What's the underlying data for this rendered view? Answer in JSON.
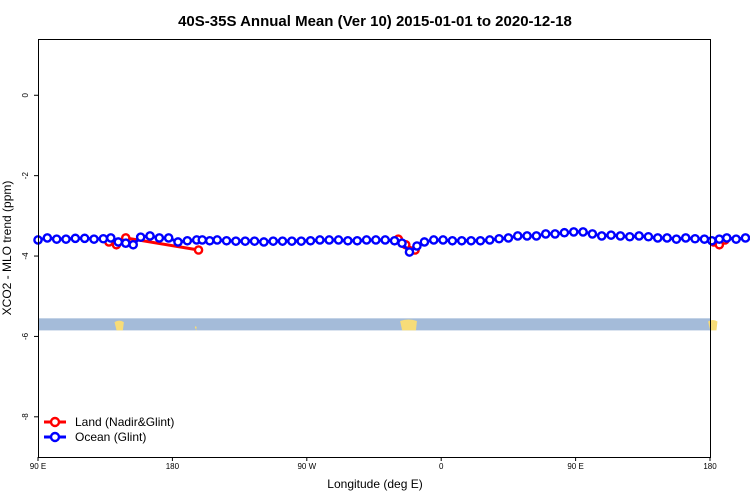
{
  "chart_data": {
    "type": "line",
    "title": "40S-35S Annual Mean (Ver 10)   2015-01-01 to 2020-12-18",
    "xlabel": "Longitude (deg E)",
    "ylabel": "XCO2 - MLO trend (ppm)",
    "xlim": [
      90,
      450
    ],
    "ylim": [
      -9.0,
      1.4
    ],
    "x_ticks": [
      {
        "value": 90,
        "label": "90 E"
      },
      {
        "value": 180,
        "label": "180"
      },
      {
        "value": 270,
        "label": "90 W"
      },
      {
        "value": 360,
        "label": "0"
      },
      {
        "value": 450,
        "label": "90 E"
      },
      {
        "value": 540,
        "label": "180"
      }
    ],
    "y_ticks": [
      0,
      -2,
      -4,
      -6,
      -8
    ],
    "grid": false,
    "legend_position": "bottom-left",
    "map_strip": {
      "y_top": -5.55,
      "y_bottom": -5.85,
      "ocean_color": "#a4bbd9",
      "land_color": "#f7dc78",
      "land": [
        [
          131,
          136,
          0.15
        ],
        [
          174,
          175,
          0.6
        ],
        [
          284,
          293,
          0.05
        ],
        [
          449,
          454,
          0.1
        ],
        [
          484,
          486,
          0.6
        ]
      ]
    },
    "series": [
      {
        "name": "Land (Nadir&Glint)",
        "color": "#ff0000",
        "segments": [
          {
            "x": [
              128,
              132,
              137
            ],
            "y": [
              -3.65,
              -3.72,
              -3.62
            ]
          },
          {
            "x": [
              137,
              176
            ],
            "y": [
              -3.55,
              -3.85
            ]
          },
          {
            "x": [
              283,
              287,
              292
            ],
            "y": [
              -3.58,
              -3.72,
              -3.85
            ]
          },
          {
            "x": [
              452,
              455,
              458
            ],
            "y": [
              -3.65,
              -3.72,
              -3.6
            ]
          },
          {
            "x": [
              488,
              491
            ],
            "y": [
              -3.82,
              -3.78
            ]
          }
        ]
      },
      {
        "name": "Ocean (Glint)",
        "color": "#0000ff",
        "x": [
          90,
          95,
          100,
          105,
          110,
          115,
          120,
          125,
          129,
          133,
          137,
          141,
          145,
          150,
          155,
          160,
          165,
          170,
          175,
          178,
          182,
          186,
          191,
          196,
          201,
          206,
          211,
          216,
          221,
          226,
          231,
          236,
          241,
          246,
          251,
          256,
          261,
          266,
          271,
          276,
          281,
          285,
          289,
          293,
          297,
          302,
          307,
          312,
          317,
          322,
          327,
          332,
          337,
          342,
          347,
          352,
          357,
          362,
          367,
          372,
          377,
          382,
          387,
          392,
          397,
          402,
          407,
          412,
          417,
          422,
          427,
          432,
          437,
          442,
          447,
          451,
          455,
          459,
          464,
          469,
          474,
          479,
          484,
          488,
          490
        ],
        "y": [
          -3.6,
          -3.55,
          -3.58,
          -3.58,
          -3.56,
          -3.56,
          -3.58,
          -3.57,
          -3.55,
          -3.65,
          -3.68,
          -3.72,
          -3.53,
          -3.5,
          -3.55,
          -3.55,
          -3.65,
          -3.62,
          -3.6,
          -3.6,
          -3.62,
          -3.6,
          -3.62,
          -3.63,
          -3.63,
          -3.63,
          -3.65,
          -3.63,
          -3.63,
          -3.63,
          -3.63,
          -3.62,
          -3.6,
          -3.6,
          -3.6,
          -3.62,
          -3.62,
          -3.6,
          -3.6,
          -3.6,
          -3.62,
          -3.68,
          -3.9,
          -3.75,
          -3.65,
          -3.6,
          -3.6,
          -3.62,
          -3.62,
          -3.62,
          -3.62,
          -3.6,
          -3.57,
          -3.55,
          -3.5,
          -3.5,
          -3.5,
          -3.45,
          -3.45,
          -3.42,
          -3.4,
          -3.4,
          -3.45,
          -3.5,
          -3.48,
          -3.5,
          -3.52,
          -3.5,
          -3.52,
          -3.55,
          -3.55,
          -3.58,
          -3.55,
          -3.57,
          -3.58,
          -3.62,
          -3.58,
          -3.55,
          -3.58,
          -3.55,
          -3.58,
          -3.6,
          -3.65,
          -3.7,
          -3.62
        ]
      }
    ]
  }
}
